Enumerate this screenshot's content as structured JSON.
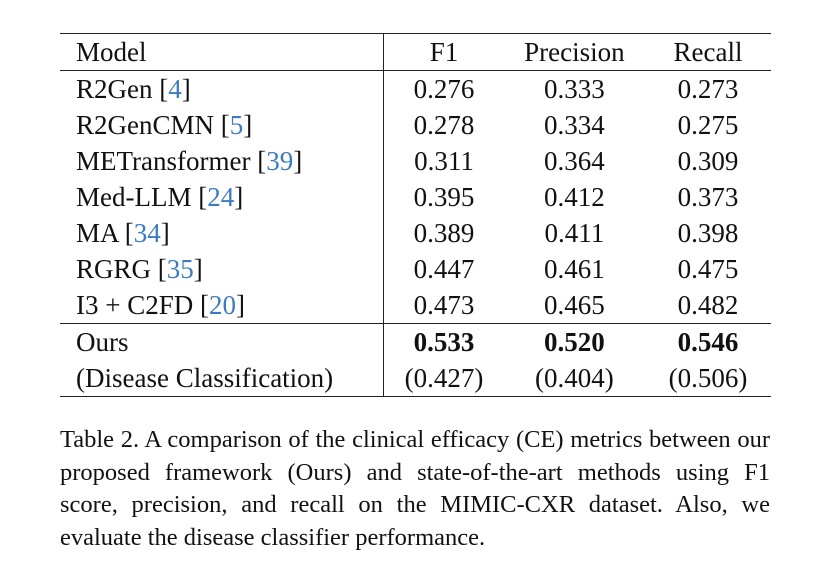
{
  "table": {
    "headers": {
      "model": "Model",
      "f1": "F1",
      "precision": "Precision",
      "recall": "Recall"
    },
    "rows": [
      {
        "model": "R2Gen",
        "ref": "4",
        "f1": "0.276",
        "precision": "0.333",
        "recall": "0.273"
      },
      {
        "model": "R2GenCMN",
        "ref": "5",
        "f1": "0.278",
        "precision": "0.334",
        "recall": "0.275"
      },
      {
        "model": "METransformer",
        "ref": "39",
        "f1": "0.311",
        "precision": "0.364",
        "recall": "0.309"
      },
      {
        "model": "Med-LLM",
        "ref": "24",
        "f1": "0.395",
        "precision": "0.412",
        "recall": "0.373"
      },
      {
        "model": "MA",
        "ref": "34",
        "f1": "0.389",
        "precision": "0.411",
        "recall": "0.398"
      },
      {
        "model": "RGRG",
        "ref": "35",
        "f1": "0.447",
        "precision": "0.461",
        "recall": "0.475"
      },
      {
        "model": "I3 + C2FD",
        "ref": "20",
        "f1": "0.473",
        "precision": "0.465",
        "recall": "0.482"
      }
    ],
    "ours": {
      "model": "Ours",
      "f1": "0.533",
      "precision": "0.520",
      "recall": "0.546"
    },
    "disease": {
      "model": "(Disease Classification)",
      "f1": "(0.427)",
      "precision": "(0.404)",
      "recall": "(0.506)"
    }
  },
  "caption": "Table 2.  A comparison of the clinical efficacy (CE) metrics between our proposed framework (Ours) and state-of-the-art methods using F1 score, precision, and recall on the MIMIC-CXR dataset. Also, we evaluate the disease classifier performance."
}
